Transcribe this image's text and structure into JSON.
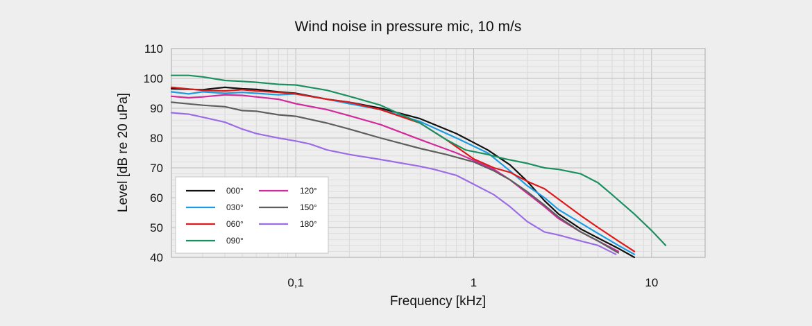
{
  "chart_data": {
    "type": "line",
    "title": "Wind noise in pressure mic, 10 m/s",
    "xlabel": "Frequency [kHz]",
    "ylabel": "Level [dB re 20 uPa]",
    "xscale": "log",
    "xlim": [
      0.02,
      20
    ],
    "ylim": [
      40,
      110
    ],
    "x_tick_labels": [
      {
        "value": 0.1,
        "label": "0,1"
      },
      {
        "value": 1,
        "label": "1"
      },
      {
        "value": 10,
        "label": "10"
      }
    ],
    "y_ticks": [
      40,
      50,
      60,
      70,
      80,
      90,
      100,
      110
    ],
    "grid": true,
    "legend_position": "bottom-left",
    "series": [
      {
        "name": "000°",
        "color": "#111111",
        "x": [
          0.02,
          0.03,
          0.04,
          0.05,
          0.06,
          0.08,
          0.1,
          0.15,
          0.2,
          0.3,
          0.5,
          0.8,
          1.2,
          1.6,
          2,
          2.5,
          3,
          4,
          5,
          6.5,
          8
        ],
        "y": [
          96.5,
          96.2,
          97.0,
          96.5,
          96.3,
          95.5,
          95.0,
          93.0,
          92.0,
          90.0,
          86.5,
          81.5,
          76.0,
          71.0,
          65.5,
          59.0,
          54.5,
          49.5,
          46.5,
          43.0,
          40.0
        ]
      },
      {
        "name": "030°",
        "color": "#1e9be0",
        "x": [
          0.02,
          0.025,
          0.03,
          0.04,
          0.05,
          0.06,
          0.08,
          0.1,
          0.15,
          0.2,
          0.3,
          0.5,
          0.8,
          1.2,
          1.6,
          2,
          2.5,
          3,
          4,
          5,
          6.5,
          8
        ],
        "y": [
          95.5,
          94.8,
          95.5,
          95.0,
          95.3,
          95.0,
          94.5,
          94.8,
          93.0,
          91.5,
          89.5,
          85.5,
          80.0,
          75.0,
          69.0,
          64.0,
          60.0,
          56.0,
          51.5,
          48.0,
          44.0,
          41.0
        ]
      },
      {
        "name": "060°",
        "color": "#dd1a1a",
        "x": [
          0.02,
          0.03,
          0.04,
          0.05,
          0.06,
          0.08,
          0.1,
          0.15,
          0.2,
          0.3,
          0.5,
          0.7,
          1,
          1.3,
          1.6,
          2,
          2.5,
          3,
          4,
          5,
          6.5,
          8
        ],
        "y": [
          97.0,
          96.0,
          95.8,
          96.2,
          95.8,
          95.3,
          94.8,
          93.0,
          92.0,
          89.5,
          85.0,
          79.5,
          73.0,
          70.0,
          68.5,
          65.5,
          63.0,
          59.5,
          54.0,
          50.0,
          45.5,
          42.0
        ]
      },
      {
        "name": "090°",
        "color": "#1a9060",
        "x": [
          0.02,
          0.025,
          0.03,
          0.04,
          0.05,
          0.06,
          0.08,
          0.1,
          0.12,
          0.15,
          0.2,
          0.3,
          0.5,
          0.7,
          0.9,
          1.2,
          1.5,
          2,
          2.5,
          3,
          4,
          5,
          6,
          8,
          10,
          12
        ],
        "y": [
          101.0,
          101.0,
          100.5,
          99.3,
          99.0,
          98.7,
          98.0,
          97.8,
          97.0,
          96.0,
          94.0,
          91.0,
          85.0,
          79.5,
          76.0,
          74.5,
          73.0,
          71.5,
          70.0,
          69.5,
          68.0,
          65.0,
          61.0,
          54.5,
          49.0,
          44.0
        ]
      },
      {
        "name": "120°",
        "color": "#d22a9a",
        "x": [
          0.02,
          0.025,
          0.03,
          0.04,
          0.05,
          0.06,
          0.08,
          0.1,
          0.15,
          0.2,
          0.3,
          0.5,
          0.8,
          1,
          1.3,
          1.6,
          2,
          2.5,
          3,
          4,
          5,
          6.5
        ],
        "y": [
          94.0,
          93.5,
          93.8,
          94.5,
          94.3,
          93.8,
          93.0,
          91.5,
          89.5,
          87.5,
          84.5,
          79.5,
          75.0,
          72.5,
          69.5,
          66.0,
          61.5,
          57.0,
          53.0,
          48.5,
          45.5,
          42.0
        ]
      },
      {
        "name": "150°",
        "color": "#5e5e5e",
        "x": [
          0.02,
          0.03,
          0.04,
          0.05,
          0.06,
          0.08,
          0.1,
          0.15,
          0.2,
          0.3,
          0.5,
          0.7,
          1,
          1.3,
          1.6,
          2,
          2.5,
          3,
          4,
          5,
          6.5
        ],
        "y": [
          92.0,
          91.0,
          90.5,
          89.2,
          89.0,
          87.8,
          87.3,
          85.0,
          83.0,
          80.0,
          76.5,
          74.5,
          72.0,
          69.0,
          66.0,
          62.0,
          57.5,
          53.5,
          48.5,
          45.5,
          41.5
        ]
      },
      {
        "name": "180°",
        "color": "#9b6ce6",
        "x": [
          0.02,
          0.025,
          0.03,
          0.04,
          0.05,
          0.06,
          0.08,
          0.1,
          0.12,
          0.15,
          0.2,
          0.3,
          0.5,
          0.6,
          0.8,
          1,
          1.3,
          1.6,
          2,
          2.5,
          3,
          4,
          5,
          6.3
        ],
        "y": [
          88.5,
          88.0,
          87.0,
          85.3,
          83.0,
          81.5,
          80.0,
          79.0,
          78.0,
          76.0,
          74.5,
          72.8,
          70.5,
          69.5,
          67.5,
          64.5,
          61.0,
          57.0,
          52.0,
          48.5,
          47.5,
          45.5,
          44.0,
          41.0
        ]
      }
    ]
  }
}
